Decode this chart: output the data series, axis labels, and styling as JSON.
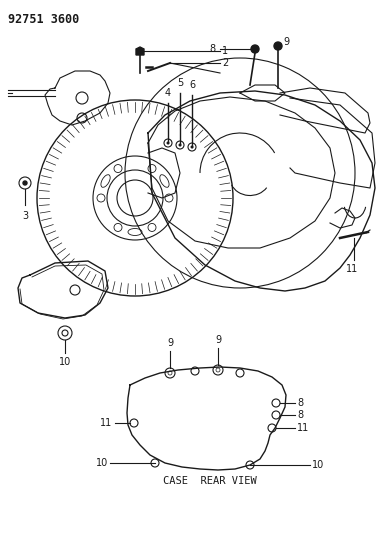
{
  "title": "92751 3600",
  "background_color": "#ffffff",
  "line_color": "#1a1a1a",
  "case_rear_view_label": "CASE  REAR VIEW",
  "fig_width": 3.83,
  "fig_height": 5.33,
  "dpi": 100
}
